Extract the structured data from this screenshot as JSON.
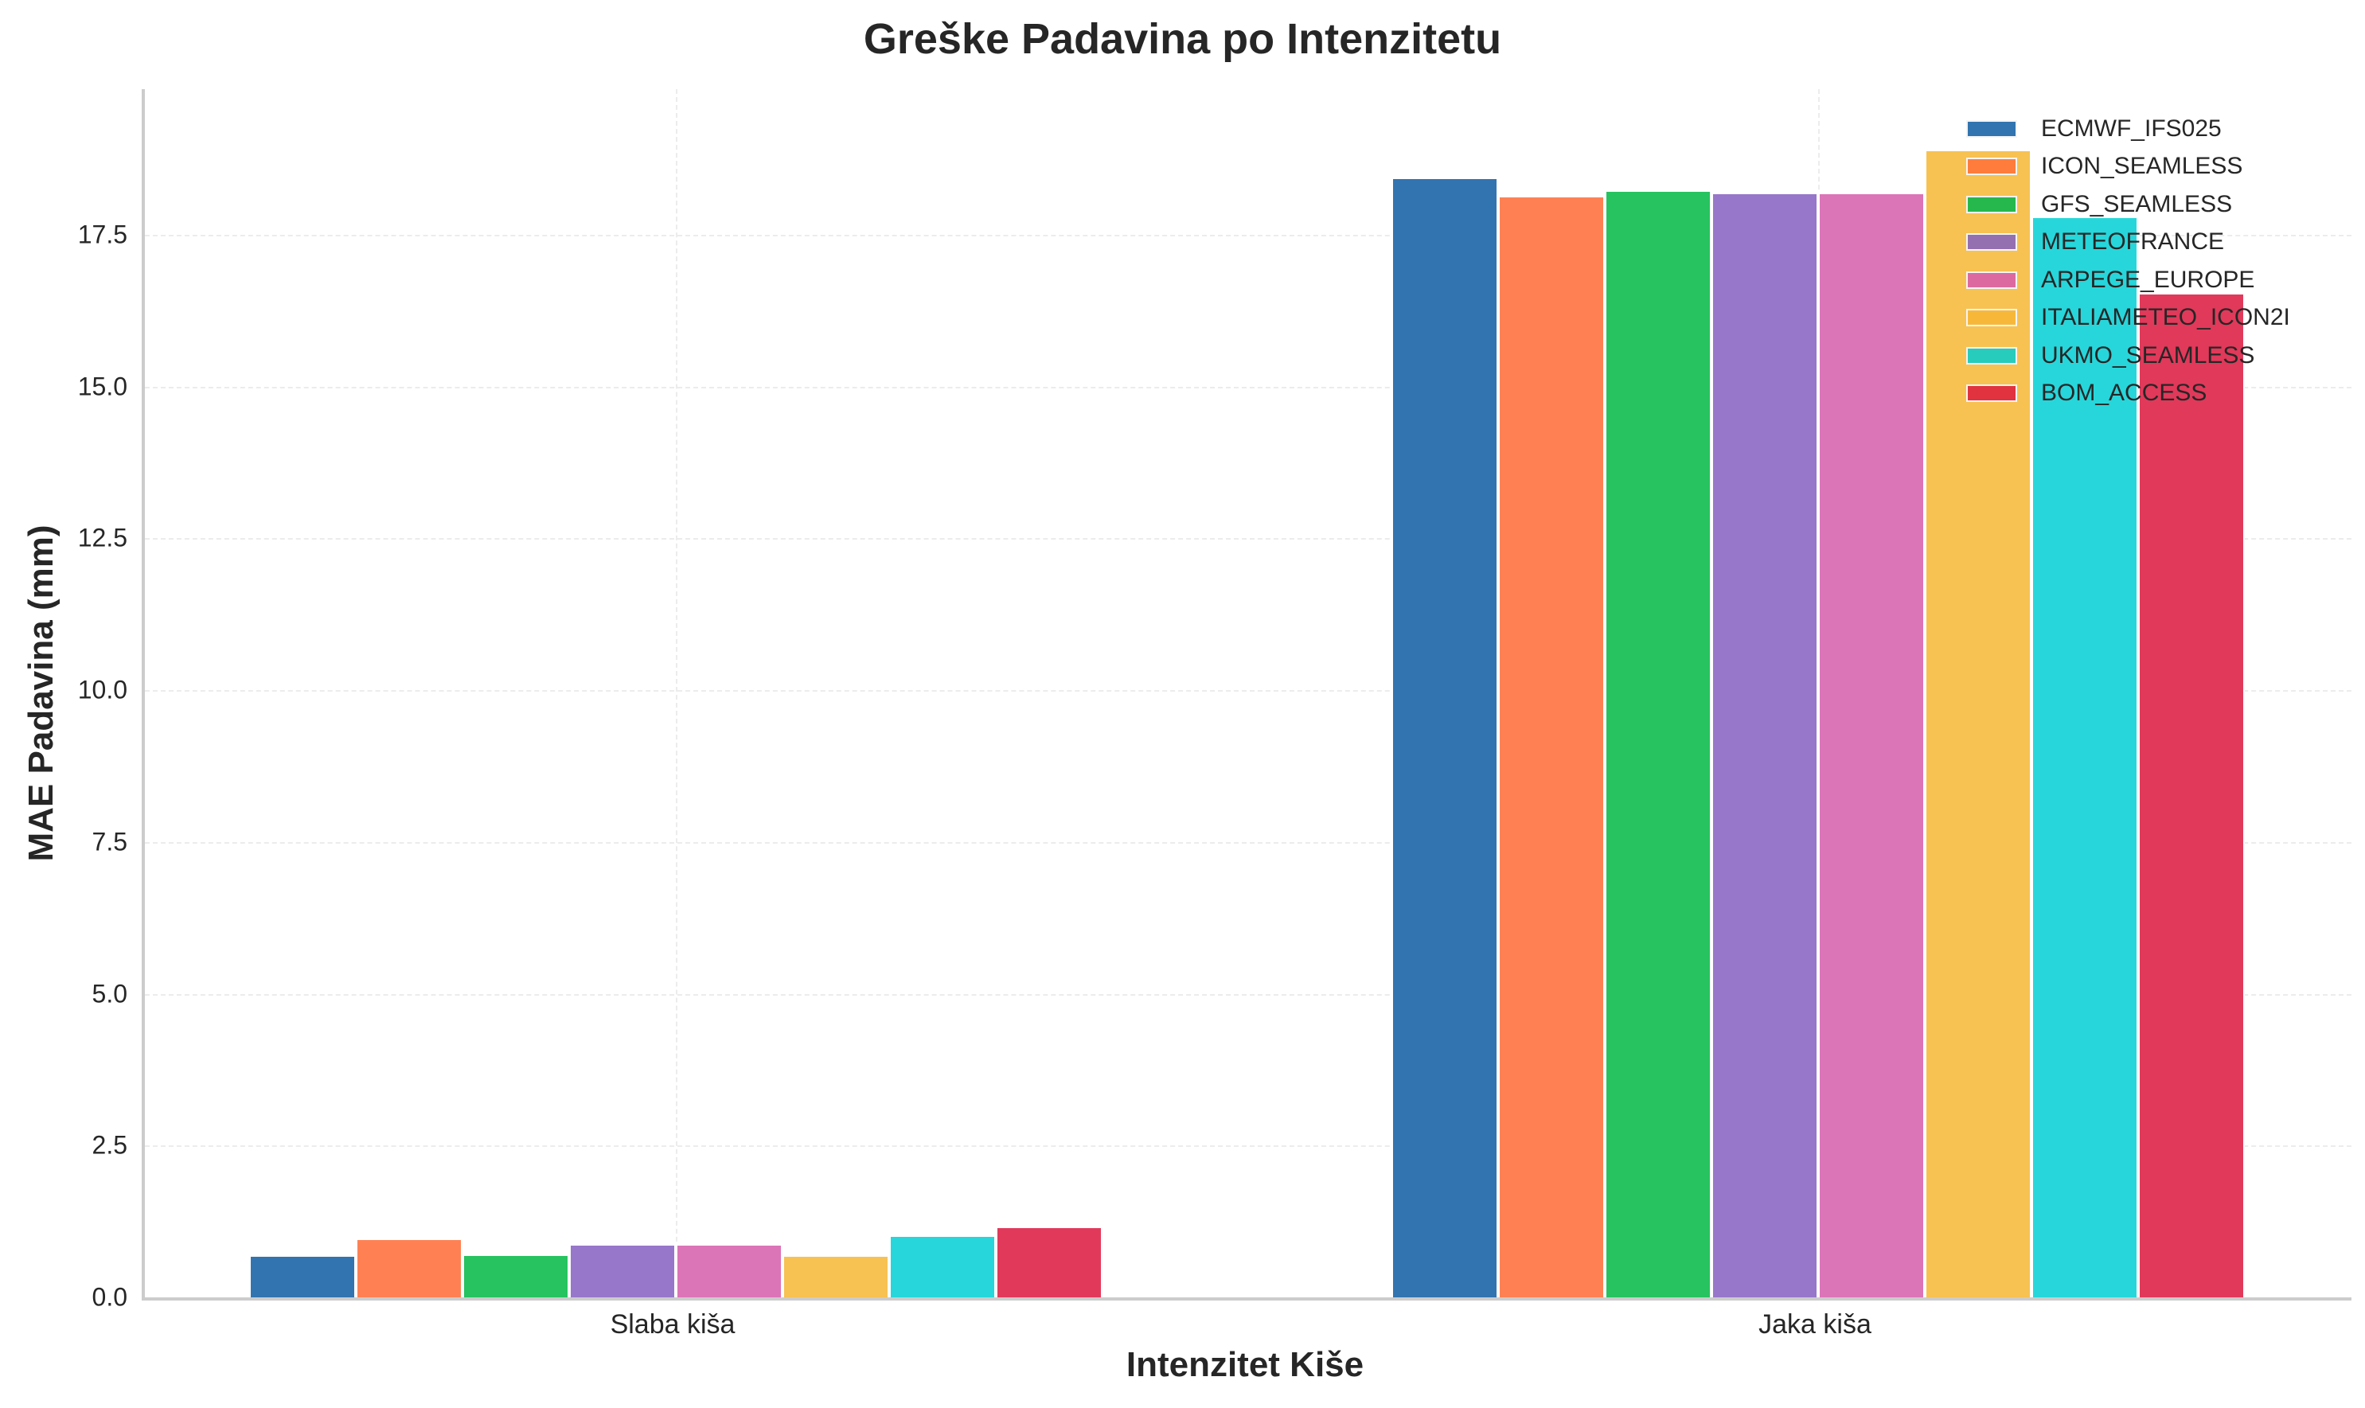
{
  "chart_data": {
    "type": "bar",
    "title": "Greške Padavina po Intenzitetu",
    "xlabel": "Intenzitet Kiše",
    "ylabel": "MAE Padavina (mm)",
    "categories": [
      "Slaba kiša",
      "Jaka kiša"
    ],
    "ylim": [
      0,
      19.9
    ],
    "yticks": [
      "0.0",
      "2.5",
      "5.0",
      "7.5",
      "10.0",
      "12.5",
      "15.0",
      "17.5"
    ],
    "ytick_values": [
      0,
      2.5,
      5,
      7.5,
      10,
      12.5,
      15,
      17.5
    ],
    "grid": true,
    "legend_position": "upper right",
    "series": [
      {
        "name": "ECMWF_IFS025",
        "color": "#3274b0",
        "values": [
          0.69,
          18.44
        ]
      },
      {
        "name": "ICON_SEAMLESS",
        "color": "#ff8153",
        "values": [
          0.97,
          18.15
        ]
      },
      {
        "name": "GFS_SEAMLESS",
        "color": "#26c360",
        "values": [
          0.71,
          18.23
        ]
      },
      {
        "name": "METEOFRANCE",
        "color": "#9777c9",
        "values": [
          0.88,
          18.2
        ]
      },
      {
        "name": "ARPEGE_EUROPE",
        "color": "#dc74b8",
        "values": [
          0.88,
          18.2
        ]
      },
      {
        "name": "ITALIAMETEO_ICON2I",
        "color": "#f7c252",
        "values": [
          0.69,
          18.91
        ]
      },
      {
        "name": "UKMO_SEAMLESS",
        "color": "#27d6da",
        "values": [
          1.02,
          17.8
        ]
      },
      {
        "name": "BOM_ACCESS",
        "color": "#e1395a",
        "values": [
          1.17,
          16.55
        ]
      }
    ]
  },
  "legend_swatch_colors": [
    "#3274b0",
    "#ff7c3c",
    "#26b84c",
    "#9470b0",
    "#dc6aa0",
    "#f7b83a",
    "#27ccbc",
    "#e0333f"
  ]
}
